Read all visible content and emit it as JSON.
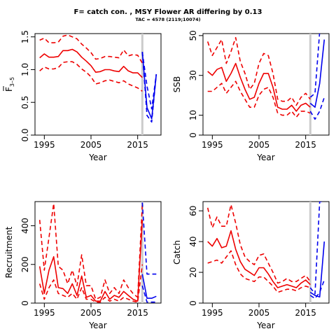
{
  "figure": {
    "title": "F= catch con. , MSY Flower AR differing by 0.13",
    "subtitle": "TAC = 4578 (2119;10074)"
  },
  "colors": {
    "historic": "#ee0000",
    "projection": "#0000ee",
    "divider": "#cccccc",
    "axis": "#000000"
  },
  "chart_data": [
    {
      "id": "fbar",
      "type": "line",
      "xlabel": "Year",
      "ylabel": "F",
      "ylabel_sub": "3–5",
      "xlim": [
        1993,
        2020
      ],
      "ylim": [
        0,
        1.55
      ],
      "xticks": [
        1995,
        2005,
        2015
      ],
      "yticks": [
        0,
        0.5,
        1.0,
        1.5
      ],
      "ytick_labels": [
        "0.0",
        "0.5",
        "1.0",
        "1.5"
      ],
      "divider_year": 2016,
      "historic": {
        "x": [
          1994,
          1995,
          1996,
          1997,
          1998,
          1999,
          2000,
          2001,
          2002,
          2003,
          2004,
          2005,
          2006,
          2007,
          2008,
          2009,
          2010,
          2011,
          2012,
          2013,
          2014,
          2015,
          2016
        ],
        "median": [
          1.18,
          1.24,
          1.19,
          1.19,
          1.2,
          1.29,
          1.29,
          1.31,
          1.27,
          1.19,
          1.13,
          1.06,
          0.96,
          0.97,
          1.0,
          1.0,
          0.98,
          0.97,
          1.05,
          0.98,
          0.95,
          0.95,
          0.88
        ],
        "upper": [
          1.45,
          1.48,
          1.41,
          1.41,
          1.42,
          1.51,
          1.53,
          1.5,
          1.47,
          1.39,
          1.33,
          1.26,
          1.16,
          1.17,
          1.2,
          1.2,
          1.19,
          1.18,
          1.3,
          1.21,
          1.23,
          1.22,
          1.1
        ],
        "lower": [
          0.98,
          1.04,
          1.01,
          1.01,
          1.03,
          1.11,
          1.12,
          1.12,
          1.08,
          1.01,
          0.96,
          0.89,
          0.78,
          0.8,
          0.83,
          0.84,
          0.82,
          0.8,
          0.83,
          0.78,
          0.75,
          0.72,
          0.67
        ]
      },
      "projection": {
        "x": [
          2016,
          2017,
          2018,
          2019
        ],
        "median": [
          1.27,
          0.42,
          0.25,
          0.93
        ],
        "upper": [
          1.27,
          0.75,
          0.4,
          0.93
        ],
        "lower": [
          1.27,
          0.3,
          0.2,
          0.93
        ]
      }
    },
    {
      "id": "ssb",
      "type": "line",
      "xlabel": "Year",
      "ylabel": "SSB",
      "xlim": [
        1993,
        2020
      ],
      "ylim": [
        0,
        51
      ],
      "xticks": [
        1995,
        2005,
        2015
      ],
      "yticks": [
        0,
        10,
        30,
        50
      ],
      "ytick_labels": [
        "0",
        "10",
        "30",
        "50"
      ],
      "divider_year": 2016,
      "historic": {
        "x": [
          1994,
          1995,
          1996,
          1997,
          1998,
          1999,
          2000,
          2001,
          2002,
          2003,
          2004,
          2005,
          2006,
          2007,
          2008,
          2009,
          2010,
          2011,
          2012,
          2013,
          2014,
          2015,
          2016
        ],
        "median": [
          32,
          30,
          33,
          34,
          27,
          31,
          36,
          29,
          23,
          18,
          19,
          26,
          31,
          31,
          24,
          14,
          13,
          13,
          15,
          12,
          15,
          16,
          14
        ],
        "upper": [
          47,
          40,
          44,
          48,
          36,
          42,
          49,
          37,
          31,
          23,
          26,
          36,
          41,
          40,
          31,
          18,
          17,
          17,
          19,
          15,
          19,
          21,
          18
        ],
        "lower": [
          22,
          22,
          24,
          26,
          21,
          24,
          27,
          22,
          18,
          14,
          14,
          20,
          23,
          24,
          19,
          11,
          10,
          10,
          12,
          9,
          12,
          12,
          11
        ]
      },
      "projection": {
        "x": [
          2016,
          2017,
          2018,
          2019
        ],
        "median": [
          16,
          14,
          26,
          48
        ],
        "upper": [
          19,
          21,
          52,
          52
        ],
        "lower": [
          12,
          8,
          12,
          19
        ]
      }
    },
    {
      "id": "recruitment",
      "type": "line",
      "xlabel": "Year",
      "ylabel": "Recruitment",
      "xlim": [
        1993,
        2020
      ],
      "ylim": [
        0,
        525
      ],
      "xticks": [
        1995,
        2005,
        2015
      ],
      "yticks": [
        0,
        200,
        400
      ],
      "ytick_labels": [
        "0",
        "200",
        "400"
      ],
      "divider_year": 2016,
      "historic": {
        "x": [
          1994,
          1995,
          1996,
          1997,
          1998,
          1999,
          2000,
          2001,
          2002,
          2003,
          2004,
          2005,
          2006,
          2007,
          2008,
          2009,
          2010,
          2011,
          2012,
          2013,
          2014,
          2015,
          2016
        ],
        "median": [
          190,
          50,
          170,
          240,
          80,
          75,
          50,
          100,
          40,
          140,
          30,
          40,
          10,
          10,
          60,
          20,
          40,
          30,
          60,
          40,
          20,
          10,
          430
        ],
        "upper": [
          430,
          170,
          340,
          515,
          190,
          170,
          100,
          170,
          90,
          250,
          90,
          90,
          20,
          30,
          120,
          50,
          80,
          50,
          120,
          80,
          50,
          30,
          510
        ],
        "lower": [
          100,
          20,
          80,
          120,
          50,
          40,
          30,
          50,
          20,
          80,
          20,
          20,
          5,
          5,
          30,
          10,
          20,
          10,
          30,
          20,
          10,
          5,
          200
        ]
      },
      "projection": {
        "x": [
          2016,
          2017,
          2018,
          2019
        ],
        "median": [
          150,
          25,
          25,
          35
        ],
        "upper": [
          520,
          150,
          150,
          150
        ],
        "lower": [
          90,
          5,
          5,
          5
        ]
      }
    },
    {
      "id": "catch",
      "type": "line",
      "xlabel": "Year",
      "ylabel": "Catch",
      "xlim": [
        1993,
        2020
      ],
      "ylim": [
        0,
        66
      ],
      "xticks": [
        1995,
        2005,
        2015
      ],
      "yticks": [
        0,
        20,
        40,
        60
      ],
      "ytick_labels": [
        "0",
        "20",
        "40",
        "60"
      ],
      "divider_year": 2016,
      "historic": {
        "x": [
          1994,
          1995,
          1996,
          1997,
          1998,
          1999,
          2000,
          2001,
          2002,
          2003,
          2004,
          2005,
          2006,
          2007,
          2008,
          2009,
          2010,
          2011,
          2012,
          2013,
          2014,
          2015,
          2016
        ],
        "median": [
          40,
          37,
          42,
          36,
          37,
          47,
          35,
          27,
          22,
          20,
          18,
          23,
          23,
          19,
          14,
          10,
          11,
          12,
          11,
          10,
          13,
          15,
          12
        ],
        "upper": [
          62,
          49,
          56,
          50,
          50,
          64,
          52,
          38,
          30,
          27,
          25,
          31,
          32,
          26,
          20,
          13,
          14,
          16,
          14,
          14,
          16,
          18,
          14
        ],
        "lower": [
          26,
          27,
          28,
          26,
          30,
          34,
          25,
          19,
          16,
          15,
          14,
          17,
          17,
          14,
          11,
          7,
          8,
          9,
          9,
          8,
          10,
          11,
          10
        ]
      },
      "projection": {
        "x": [
          2016,
          2017,
          2018,
          2019
        ],
        "median": [
          7,
          5,
          4,
          40
        ],
        "upper": [
          10,
          6,
          66,
          66
        ],
        "lower": [
          5,
          3,
          7,
          15
        ]
      }
    }
  ]
}
